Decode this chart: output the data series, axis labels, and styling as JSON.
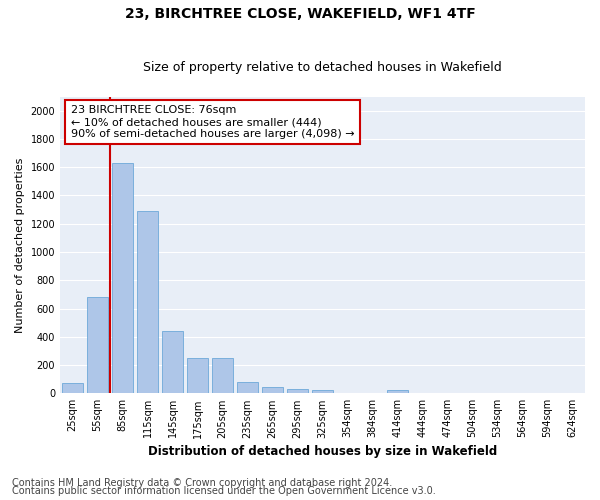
{
  "title1": "23, BIRCHTREE CLOSE, WAKEFIELD, WF1 4TF",
  "title2": "Size of property relative to detached houses in Wakefield",
  "xlabel": "Distribution of detached houses by size in Wakefield",
  "ylabel": "Number of detached properties",
  "categories": [
    "25sqm",
    "55sqm",
    "85sqm",
    "115sqm",
    "145sqm",
    "175sqm",
    "205sqm",
    "235sqm",
    "265sqm",
    "295sqm",
    "325sqm",
    "354sqm",
    "384sqm",
    "414sqm",
    "444sqm",
    "474sqm",
    "504sqm",
    "534sqm",
    "564sqm",
    "594sqm",
    "624sqm"
  ],
  "values": [
    75,
    680,
    1630,
    1290,
    440,
    250,
    250,
    80,
    45,
    30,
    25,
    0,
    0,
    20,
    0,
    0,
    0,
    0,
    0,
    0,
    0
  ],
  "bar_color": "#aec6e8",
  "bar_edge_color": "#5a9fd4",
  "vline_color": "#cc0000",
  "annotation_text": "23 BIRCHTREE CLOSE: 76sqm\n← 10% of detached houses are smaller (444)\n90% of semi-detached houses are larger (4,098) →",
  "annotation_box_color": "#ffffff",
  "annotation_box_edge_color": "#cc0000",
  "ylim": [
    0,
    2100
  ],
  "yticks": [
    0,
    200,
    400,
    600,
    800,
    1000,
    1200,
    1400,
    1600,
    1800,
    2000
  ],
  "footer1": "Contains HM Land Registry data © Crown copyright and database right 2024.",
  "footer2": "Contains public sector information licensed under the Open Government Licence v3.0.",
  "plot_bg_color": "#e8eef7",
  "fig_bg_color": "#ffffff",
  "grid_color": "#ffffff",
  "title1_fontsize": 10,
  "title2_fontsize": 9,
  "xlabel_fontsize": 8.5,
  "ylabel_fontsize": 8,
  "tick_fontsize": 7,
  "footer_fontsize": 7,
  "annotation_fontsize": 8
}
